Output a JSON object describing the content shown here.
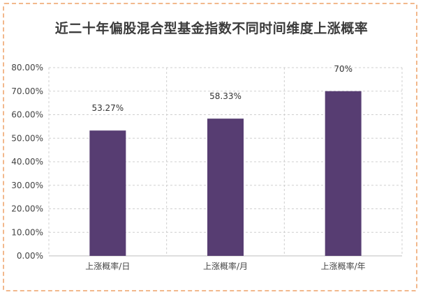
{
  "title": "近二十年偏股混合型基金指数不同时间维度上涨概率",
  "colors": {
    "bar": "#573d72",
    "grid": "#cfcfcf",
    "frame": "#f2b88c"
  },
  "chart_data": {
    "type": "bar",
    "title": "近二十年偏股混合型基金指数不同时间维度上涨概率",
    "categories": [
      "上涨概率/日",
      "上涨概率/月",
      "上涨概率/年"
    ],
    "values": [
      53.27,
      58.33,
      70
    ],
    "data_labels": [
      "53.27%",
      "58.33%",
      "70%"
    ],
    "y_ticks": [
      "0.00%",
      "10.00%",
      "20.00%",
      "30.00%",
      "40.00%",
      "50.00%",
      "60.00%",
      "70.00%",
      "80.00%"
    ],
    "ylim": [
      0,
      80
    ],
    "grid": true,
    "legend": "none"
  }
}
